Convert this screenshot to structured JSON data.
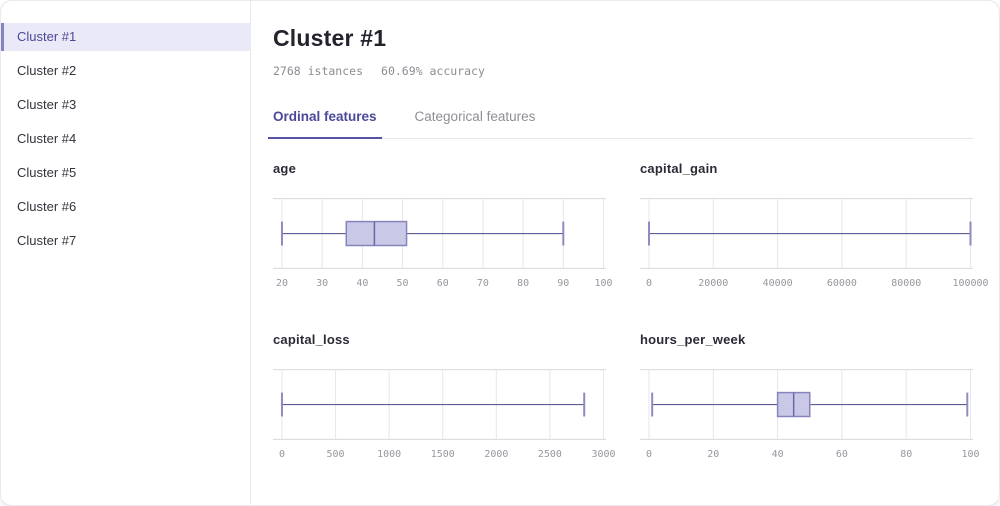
{
  "sidebar": {
    "items": [
      {
        "label": "Cluster #1",
        "selected": true
      },
      {
        "label": "Cluster #2",
        "selected": false
      },
      {
        "label": "Cluster #3",
        "selected": false
      },
      {
        "label": "Cluster #4",
        "selected": false
      },
      {
        "label": "Cluster #5",
        "selected": false
      },
      {
        "label": "Cluster #6",
        "selected": false
      },
      {
        "label": "Cluster #7",
        "selected": false
      }
    ]
  },
  "header": {
    "title": "Cluster #1",
    "instances": "2768 istances",
    "accuracy": "60.69% accuracy"
  },
  "tabs": [
    {
      "label": "Ordinal features",
      "active": true
    },
    {
      "label": "Categorical features",
      "active": false
    }
  ],
  "colors": {
    "accent": "#5653a6",
    "selected_bg": "#eae9f8",
    "box_fill": "#c9c8e7",
    "box_stroke": "#8684bd",
    "median": "#6a68a6",
    "whisker": "#5d5c94",
    "cap": "#8d8bc0",
    "grid": "#e6e6ec",
    "axis_border": "#d7d7de",
    "tick_label": "#97979f"
  },
  "chart_data": [
    {
      "type": "box",
      "title": "age",
      "xlim": [
        20,
        100
      ],
      "ticks": [
        20,
        30,
        40,
        50,
        60,
        70,
        80,
        90,
        100
      ],
      "stats": {
        "min": 20,
        "q1": 36,
        "median": 43,
        "q3": 51,
        "max": 90
      }
    },
    {
      "type": "box",
      "title": "capital_gain",
      "xlim": [
        0,
        100000
      ],
      "ticks": [
        0,
        20000,
        40000,
        60000,
        80000,
        100000
      ],
      "stats": {
        "min": 0,
        "q1": 0,
        "median": 0,
        "q3": 0,
        "max": 100000
      }
    },
    {
      "type": "box",
      "title": "capital_loss",
      "xlim": [
        0,
        3000
      ],
      "ticks": [
        0,
        500,
        1000,
        1500,
        2000,
        2500,
        3000
      ],
      "stats": {
        "min": 0,
        "q1": 0,
        "median": 0,
        "q3": 0,
        "max": 2820
      }
    },
    {
      "type": "box",
      "title": "hours_per_week",
      "xlim": [
        0,
        100
      ],
      "ticks": [
        0,
        20,
        40,
        60,
        80,
        100
      ],
      "stats": {
        "min": 1,
        "q1": 40,
        "median": 45,
        "q3": 50,
        "max": 99
      }
    }
  ]
}
